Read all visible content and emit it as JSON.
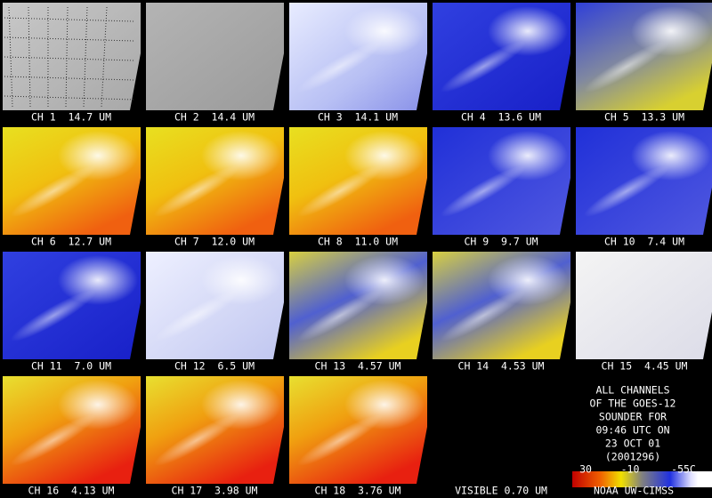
{
  "panels": [
    {
      "label": "CH 1  14.7 UM"
    },
    {
      "label": "CH 2  14.4 UM"
    },
    {
      "label": "CH 3  14.1 UM"
    },
    {
      "label": "CH 4  13.6 UM"
    },
    {
      "label": "CH 5  13.3 UM"
    },
    {
      "label": "CH 6  12.7 UM"
    },
    {
      "label": "CH 7  12.0 UM"
    },
    {
      "label": "CH 8  11.0 UM"
    },
    {
      "label": "CH 9  9.7 UM"
    },
    {
      "label": "CH 10  7.4 UM"
    },
    {
      "label": "CH 11  7.0 UM"
    },
    {
      "label": "CH 12  6.5 UM"
    },
    {
      "label": "CH 13  4.57 UM"
    },
    {
      "label": "CH 14  4.53 UM"
    },
    {
      "label": "CH 15  4.45 UM"
    },
    {
      "label": "CH 16  4.13 UM"
    },
    {
      "label": "CH 17  3.98 UM"
    },
    {
      "label": "CH 18  3.76 UM"
    },
    {
      "label": "VISIBLE 0.70 UM"
    }
  ],
  "info": {
    "lines": [
      "ALL CHANNELS",
      "OF THE GOES-12",
      "SOUNDER FOR",
      "09:46 UTC ON",
      "23 OCT 01",
      "(2001296)"
    ],
    "colorbar_labels": [
      "30",
      "-10",
      "-55C"
    ],
    "credit": "NOAA UW-CIMSS"
  }
}
